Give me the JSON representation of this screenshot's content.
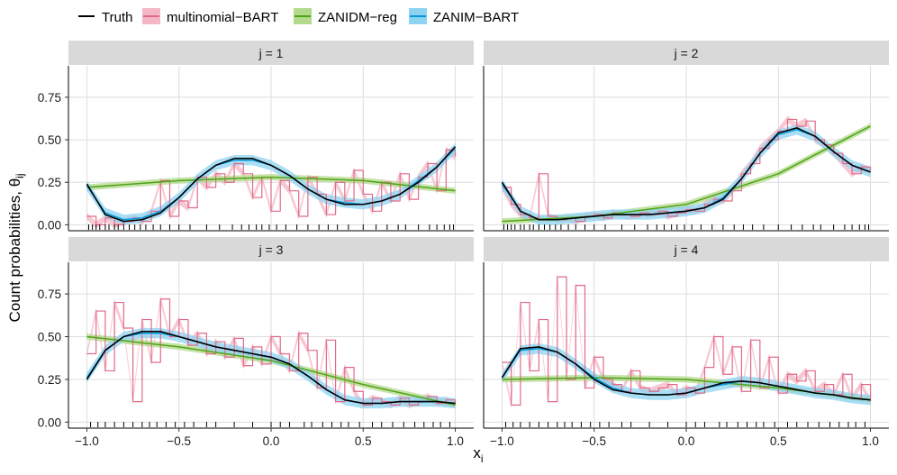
{
  "legend": {
    "placement": "top-left",
    "items": [
      {
        "label": "Truth",
        "color": "#000000",
        "kind": "line"
      },
      {
        "label": "multinomial−BART",
        "color": "#E16A86",
        "fill": "#F4B6C4",
        "kind": "band"
      },
      {
        "label": "ZANIDM−reg",
        "color": "#50A315",
        "fill": "#B2D98C",
        "kind": "band"
      },
      {
        "label": "ZANIM−BART",
        "color": "#009ADE",
        "fill": "#8ED3F2",
        "kind": "band"
      }
    ]
  },
  "axes": {
    "ylabel_main": "Count probabilities, θ",
    "ylabel_sub": "ij",
    "xlabel_main": "x",
    "xlabel_sub": "i",
    "x_ticks": [
      "−1.0",
      "−0.5",
      "0.0",
      "0.5",
      "1.0"
    ],
    "y_ticks": [
      "0.00",
      "0.25",
      "0.50",
      "0.75"
    ]
  },
  "chart_data": {
    "type": "line",
    "layout": "facet-grid 2x2",
    "xlim": [
      -1.0,
      1.0
    ],
    "ylim": [
      0.0,
      0.9
    ],
    "x_tick_values": [
      -1.0,
      -0.5,
      0.0,
      0.5,
      1.0
    ],
    "y_tick_values": [
      0.0,
      0.25,
      0.5,
      0.75
    ],
    "grid": true,
    "panels": [
      {
        "title": "j = 1",
        "truth": {
          "x": [
            -1.0,
            -0.9,
            -0.8,
            -0.7,
            -0.6,
            -0.5,
            -0.4,
            -0.3,
            -0.2,
            -0.1,
            0.0,
            0.1,
            0.2,
            0.3,
            0.4,
            0.5,
            0.6,
            0.7,
            0.8,
            0.9,
            1.0
          ],
          "y": [
            0.24,
            0.06,
            0.02,
            0.03,
            0.07,
            0.16,
            0.27,
            0.35,
            0.39,
            0.39,
            0.35,
            0.29,
            0.21,
            0.15,
            0.12,
            0.12,
            0.14,
            0.18,
            0.25,
            0.34,
            0.46
          ]
        },
        "zanidm_reg": {
          "x": [
            -1.0,
            -0.5,
            0.0,
            0.5,
            1.0
          ],
          "y": [
            0.22,
            0.26,
            0.28,
            0.26,
            0.2
          ]
        },
        "multinomial_bart": {
          "x": [
            -1.0,
            -0.95,
            -0.9,
            -0.85,
            -0.8,
            -0.75,
            -0.7,
            -0.65,
            -0.6,
            -0.55,
            -0.5,
            -0.45,
            -0.4,
            -0.35,
            -0.3,
            -0.25,
            -0.2,
            -0.15,
            -0.1,
            -0.05,
            0.0,
            0.05,
            0.1,
            0.15,
            0.2,
            0.25,
            0.3,
            0.35,
            0.4,
            0.45,
            0.5,
            0.55,
            0.6,
            0.65,
            0.7,
            0.75,
            0.8,
            0.85,
            0.9,
            0.95,
            1.0
          ],
          "y": [
            0.05,
            0.0,
            0.04,
            0.0,
            0.02,
            0.04,
            0.02,
            0.08,
            0.26,
            0.05,
            0.14,
            0.1,
            0.28,
            0.22,
            0.3,
            0.25,
            0.36,
            0.3,
            0.16,
            0.28,
            0.08,
            0.26,
            0.2,
            0.05,
            0.28,
            0.18,
            0.06,
            0.25,
            0.14,
            0.32,
            0.18,
            0.08,
            0.25,
            0.14,
            0.3,
            0.15,
            0.28,
            0.36,
            0.2,
            0.44,
            0.4
          ]
        },
        "zanim_bart": {
          "x": [
            -1.0,
            -0.9,
            -0.8,
            -0.7,
            -0.6,
            -0.5,
            -0.4,
            -0.3,
            -0.2,
            -0.1,
            0.0,
            0.1,
            0.2,
            0.3,
            0.4,
            0.5,
            0.6,
            0.7,
            0.8,
            0.9,
            1.0
          ],
          "y": [
            0.23,
            0.07,
            0.03,
            0.04,
            0.08,
            0.16,
            0.27,
            0.35,
            0.38,
            0.38,
            0.35,
            0.29,
            0.21,
            0.15,
            0.13,
            0.12,
            0.14,
            0.18,
            0.26,
            0.34,
            0.45
          ]
        },
        "rug": [
          -0.99,
          -0.97,
          -0.95,
          -0.93,
          -0.9,
          -0.88,
          -0.85,
          -0.83,
          -0.8,
          -0.77,
          -0.74,
          -0.71,
          -0.68,
          -0.64,
          -0.6,
          -0.55,
          -0.5,
          -0.44,
          -0.35,
          -0.28,
          -0.21,
          -0.16,
          -0.12,
          -0.08,
          -0.05,
          -0.01,
          0.03,
          0.08,
          0.14,
          0.2,
          0.26,
          0.31,
          0.36,
          0.42,
          0.5,
          0.57,
          0.63,
          0.69,
          0.73,
          0.8,
          0.86,
          0.9,
          0.94,
          0.97,
          0.99
        ]
      },
      {
        "title": "j = 2",
        "truth": {
          "x": [
            -1.0,
            -0.9,
            -0.8,
            -0.7,
            -0.6,
            -0.5,
            -0.4,
            -0.3,
            -0.2,
            -0.1,
            0.0,
            0.1,
            0.2,
            0.3,
            0.4,
            0.5,
            0.6,
            0.7,
            0.8,
            0.9,
            1.0
          ],
          "y": [
            0.25,
            0.08,
            0.03,
            0.03,
            0.04,
            0.05,
            0.06,
            0.06,
            0.06,
            0.07,
            0.08,
            0.1,
            0.15,
            0.27,
            0.42,
            0.54,
            0.57,
            0.52,
            0.43,
            0.35,
            0.31
          ]
        },
        "zanidm_reg": {
          "x": [
            -1.0,
            -0.5,
            0.0,
            0.5,
            1.0
          ],
          "y": [
            0.02,
            0.05,
            0.12,
            0.3,
            0.58
          ]
        },
        "multinomial_bart": {
          "x": [
            -1.0,
            -0.95,
            -0.9,
            -0.85,
            -0.8,
            -0.75,
            -0.7,
            -0.65,
            -0.6,
            -0.55,
            -0.5,
            -0.45,
            -0.4,
            -0.35,
            -0.3,
            -0.25,
            -0.2,
            -0.15,
            -0.1,
            -0.05,
            0.0,
            0.05,
            0.1,
            0.15,
            0.2,
            0.25,
            0.3,
            0.35,
            0.4,
            0.45,
            0.5,
            0.55,
            0.6,
            0.65,
            0.7,
            0.75,
            0.8,
            0.85,
            0.9,
            0.95,
            1.0
          ],
          "y": [
            0.22,
            0.12,
            0.06,
            0.04,
            0.3,
            0.05,
            0.03,
            0.04,
            0.02,
            0.05,
            0.06,
            0.04,
            0.07,
            0.06,
            0.05,
            0.07,
            0.06,
            0.08,
            0.05,
            0.07,
            0.09,
            0.08,
            0.12,
            0.15,
            0.14,
            0.2,
            0.3,
            0.36,
            0.45,
            0.5,
            0.55,
            0.62,
            0.58,
            0.61,
            0.5,
            0.47,
            0.42,
            0.36,
            0.3,
            0.34,
            0.32
          ]
        },
        "zanim_bart": {
          "x": [
            -1.0,
            -0.9,
            -0.8,
            -0.7,
            -0.6,
            -0.5,
            -0.4,
            -0.3,
            -0.2,
            -0.1,
            0.0,
            0.1,
            0.2,
            0.3,
            0.4,
            0.5,
            0.6,
            0.7,
            0.8,
            0.9,
            1.0
          ],
          "y": [
            0.24,
            0.08,
            0.03,
            0.03,
            0.04,
            0.05,
            0.06,
            0.06,
            0.06,
            0.07,
            0.08,
            0.1,
            0.16,
            0.27,
            0.42,
            0.53,
            0.56,
            0.52,
            0.43,
            0.35,
            0.31
          ]
        },
        "rug": [
          -0.99,
          -0.97,
          -0.95,
          -0.93,
          -0.9,
          -0.88,
          -0.85,
          -0.83,
          -0.8,
          -0.77,
          -0.74,
          -0.71,
          -0.68,
          -0.64,
          -0.6,
          -0.55,
          -0.5,
          -0.44,
          -0.35,
          -0.28,
          -0.21,
          -0.16,
          -0.12,
          -0.08,
          -0.05,
          -0.01,
          0.03,
          0.08,
          0.14,
          0.2,
          0.26,
          0.31,
          0.36,
          0.42,
          0.5,
          0.57,
          0.63,
          0.69,
          0.73,
          0.8,
          0.86,
          0.9,
          0.94,
          0.97,
          0.99
        ]
      },
      {
        "title": "j = 3",
        "truth": {
          "x": [
            -1.0,
            -0.9,
            -0.8,
            -0.7,
            -0.6,
            -0.5,
            -0.4,
            -0.3,
            -0.2,
            -0.1,
            0.0,
            0.1,
            0.2,
            0.3,
            0.4,
            0.5,
            0.6,
            0.7,
            0.8,
            0.9,
            1.0
          ],
          "y": [
            0.25,
            0.42,
            0.5,
            0.53,
            0.53,
            0.5,
            0.47,
            0.44,
            0.42,
            0.4,
            0.38,
            0.34,
            0.27,
            0.19,
            0.13,
            0.11,
            0.11,
            0.12,
            0.12,
            0.12,
            0.11
          ]
        },
        "zanidm_reg": {
          "x": [
            -1.0,
            -0.5,
            0.0,
            0.5,
            1.0
          ],
          "y": [
            0.5,
            0.44,
            0.36,
            0.22,
            0.1
          ]
        },
        "multinomial_bart": {
          "x": [
            -1.0,
            -0.95,
            -0.9,
            -0.85,
            -0.8,
            -0.75,
            -0.7,
            -0.65,
            -0.6,
            -0.55,
            -0.5,
            -0.45,
            -0.4,
            -0.35,
            -0.3,
            -0.25,
            -0.2,
            -0.15,
            -0.1,
            -0.05,
            0.0,
            0.05,
            0.1,
            0.15,
            0.2,
            0.25,
            0.3,
            0.35,
            0.4,
            0.45,
            0.5,
            0.55,
            0.6,
            0.65,
            0.7,
            0.75,
            0.8,
            0.85,
            0.9,
            0.95,
            1.0
          ],
          "y": [
            0.4,
            0.65,
            0.3,
            0.7,
            0.55,
            0.12,
            0.6,
            0.35,
            0.72,
            0.5,
            0.6,
            0.45,
            0.52,
            0.4,
            0.47,
            0.38,
            0.49,
            0.33,
            0.44,
            0.34,
            0.5,
            0.4,
            0.3,
            0.52,
            0.42,
            0.2,
            0.48,
            0.12,
            0.32,
            0.18,
            0.1,
            0.14,
            0.12,
            0.1,
            0.14,
            0.1,
            0.12,
            0.15,
            0.11,
            0.13,
            0.1
          ]
        },
        "zanim_bart": {
          "x": [
            -1.0,
            -0.9,
            -0.8,
            -0.7,
            -0.6,
            -0.5,
            -0.4,
            -0.3,
            -0.2,
            -0.1,
            0.0,
            0.1,
            0.2,
            0.3,
            0.4,
            0.5,
            0.6,
            0.7,
            0.8,
            0.9,
            1.0
          ],
          "y": [
            0.26,
            0.42,
            0.5,
            0.52,
            0.52,
            0.5,
            0.47,
            0.44,
            0.42,
            0.4,
            0.38,
            0.34,
            0.27,
            0.19,
            0.13,
            0.11,
            0.11,
            0.12,
            0.12,
            0.12,
            0.11
          ]
        },
        "rug": [
          -0.98,
          -0.94,
          -0.9,
          -0.85,
          -0.8,
          -0.75,
          -0.7,
          -0.66,
          -0.62,
          -0.57,
          -0.52,
          -0.47,
          -0.42,
          -0.35,
          -0.3,
          -0.2,
          -0.1,
          0.0,
          0.05,
          0.1,
          0.18,
          0.22,
          0.28,
          0.33,
          0.38,
          0.42,
          0.48,
          0.55,
          0.6,
          0.66,
          0.72,
          0.78,
          0.83,
          0.88,
          0.92,
          0.97
        ]
      },
      {
        "title": "j = 4",
        "truth": {
          "x": [
            -1.0,
            -0.9,
            -0.8,
            -0.7,
            -0.6,
            -0.5,
            -0.4,
            -0.3,
            -0.2,
            -0.1,
            0.0,
            0.1,
            0.2,
            0.3,
            0.4,
            0.5,
            0.6,
            0.7,
            0.8,
            0.9,
            1.0
          ],
          "y": [
            0.26,
            0.43,
            0.44,
            0.41,
            0.34,
            0.25,
            0.19,
            0.17,
            0.16,
            0.16,
            0.17,
            0.2,
            0.23,
            0.24,
            0.23,
            0.21,
            0.19,
            0.17,
            0.16,
            0.14,
            0.13
          ]
        },
        "zanidm_reg": {
          "x": [
            -1.0,
            -0.5,
            0.0,
            0.5,
            1.0
          ],
          "y": [
            0.25,
            0.26,
            0.25,
            0.2,
            0.13
          ]
        },
        "multinomial_bart": {
          "x": [
            -1.0,
            -0.95,
            -0.9,
            -0.85,
            -0.8,
            -0.75,
            -0.7,
            -0.65,
            -0.6,
            -0.55,
            -0.5,
            -0.45,
            -0.4,
            -0.35,
            -0.3,
            -0.25,
            -0.2,
            -0.15,
            -0.1,
            -0.05,
            0.0,
            0.05,
            0.1,
            0.15,
            0.2,
            0.25,
            0.3,
            0.35,
            0.4,
            0.45,
            0.5,
            0.55,
            0.6,
            0.65,
            0.7,
            0.75,
            0.8,
            0.85,
            0.9,
            0.95,
            1.0
          ],
          "y": [
            0.35,
            0.1,
            0.7,
            0.3,
            0.6,
            0.12,
            0.85,
            0.25,
            0.8,
            0.2,
            0.38,
            0.25,
            0.22,
            0.18,
            0.3,
            0.2,
            0.18,
            0.2,
            0.22,
            0.16,
            0.2,
            0.17,
            0.32,
            0.5,
            0.28,
            0.44,
            0.18,
            0.48,
            0.2,
            0.38,
            0.17,
            0.28,
            0.24,
            0.3,
            0.18,
            0.22,
            0.16,
            0.28,
            0.14,
            0.22,
            0.12
          ]
        },
        "zanim_bart": {
          "x": [
            -1.0,
            -0.9,
            -0.8,
            -0.7,
            -0.6,
            -0.5,
            -0.4,
            -0.3,
            -0.2,
            -0.1,
            0.0,
            0.1,
            0.2,
            0.3,
            0.4,
            0.5,
            0.6,
            0.7,
            0.8,
            0.9,
            1.0
          ],
          "y": [
            0.26,
            0.42,
            0.43,
            0.41,
            0.34,
            0.26,
            0.2,
            0.17,
            0.16,
            0.16,
            0.17,
            0.2,
            0.22,
            0.24,
            0.23,
            0.21,
            0.19,
            0.17,
            0.16,
            0.14,
            0.13
          ]
        },
        "rug": [
          -0.98,
          -0.94,
          -0.9,
          -0.85,
          -0.8,
          -0.75,
          -0.7,
          -0.66,
          -0.62,
          -0.57,
          -0.52,
          -0.47,
          -0.42,
          -0.35,
          -0.3,
          -0.2,
          -0.1,
          0.0,
          0.05,
          0.1,
          0.18,
          0.22,
          0.28,
          0.33,
          0.38,
          0.42,
          0.48,
          0.55,
          0.6,
          0.66,
          0.72,
          0.78,
          0.83,
          0.88,
          0.92,
          0.97
        ]
      }
    ]
  }
}
